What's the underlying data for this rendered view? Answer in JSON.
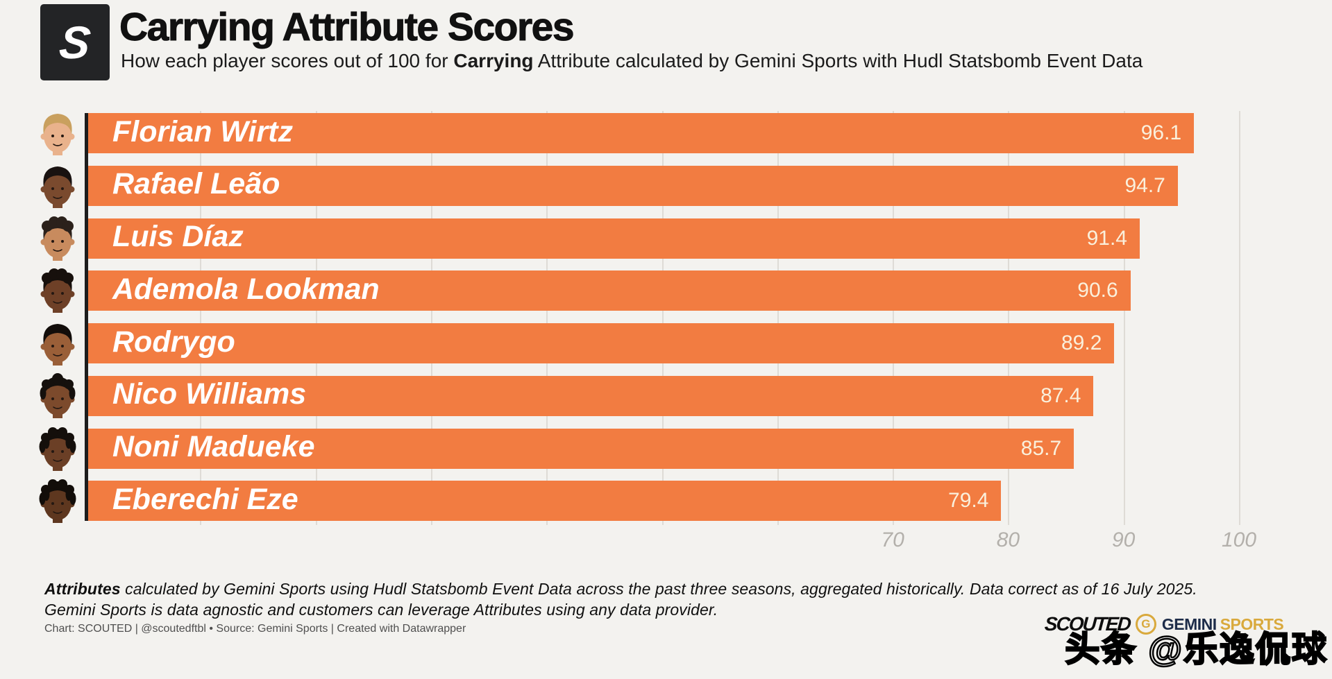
{
  "header": {
    "logo_letter": "S",
    "title": "Carrying Attribute Scores",
    "subtitle_prefix": "How each player scores out of 100 for ",
    "subtitle_bold": "Carrying",
    "subtitle_suffix": " Attribute calculated by Gemini Sports with Hudl Statsbomb Event Data"
  },
  "chart_data": {
    "type": "bar",
    "orientation": "horizontal",
    "title": "Carrying Attribute Scores",
    "value_range": [
      0,
      100
    ],
    "gridline_step": 10,
    "axis_ticks": [
      70,
      80,
      90,
      100
    ],
    "bar_color": "#F27C41",
    "value_label_color": "#FAF0DC",
    "categories": [
      "Florian Wirtz",
      "Rafael Leão",
      "Luis Díaz",
      "Ademola Lookman",
      "Rodrygo",
      "Nico Williams",
      "Noni Madueke",
      "Eberechi Eze"
    ],
    "values": [
      96.1,
      94.7,
      91.4,
      90.6,
      89.2,
      87.4,
      85.7,
      79.4
    ],
    "players": [
      {
        "name": "Florian Wirtz",
        "value": 96.1,
        "skin": "#e9b28c",
        "hair": "#c9a05e",
        "hair_style": "short"
      },
      {
        "name": "Rafael Leão",
        "value": 94.7,
        "skin": "#7a4a2e",
        "hair": "#191210",
        "hair_style": "short"
      },
      {
        "name": "Luis Díaz",
        "value": 91.4,
        "skin": "#c88b5e",
        "hair": "#2b211b",
        "hair_style": "curly"
      },
      {
        "name": "Ademola Lookman",
        "value": 90.6,
        "skin": "#6e4027",
        "hair": "#17100c",
        "hair_style": "curly"
      },
      {
        "name": "Rodrygo",
        "value": 89.2,
        "skin": "#9a5f38",
        "hair": "#120d0a",
        "hair_style": "short"
      },
      {
        "name": "Nico Williams",
        "value": 87.4,
        "skin": "#7c4a2c",
        "hair": "#15100d",
        "hair_style": "braids"
      },
      {
        "name": "Noni Madueke",
        "value": 85.7,
        "skin": "#6b3f26",
        "hair": "#140f0b",
        "hair_style": "dreads"
      },
      {
        "name": "Eberechi Eze",
        "value": 79.4,
        "skin": "#5e371f",
        "hair": "#120d09",
        "hair_style": "dreads"
      }
    ]
  },
  "footer": {
    "note_bold": "Attributes",
    "note_rest": " calculated by Gemini Sports using Hudl Statsbomb Event Data across the past three seasons, aggregated historically. Data correct as of 16 July 2025.",
    "note_line2": "Gemini Sports is data agnostic and customers can leverage Attributes using any data provider.",
    "credit": "Chart: SCOUTED | @scoutedftbl • Source: Gemini Sports | Created with Datawrapper",
    "logos": {
      "scouted": "SCOUTED",
      "gemini_g": "G",
      "gemini": "GEMINI",
      "sports": "SPORTS"
    },
    "watermark": "头条 @乐逸侃球"
  }
}
